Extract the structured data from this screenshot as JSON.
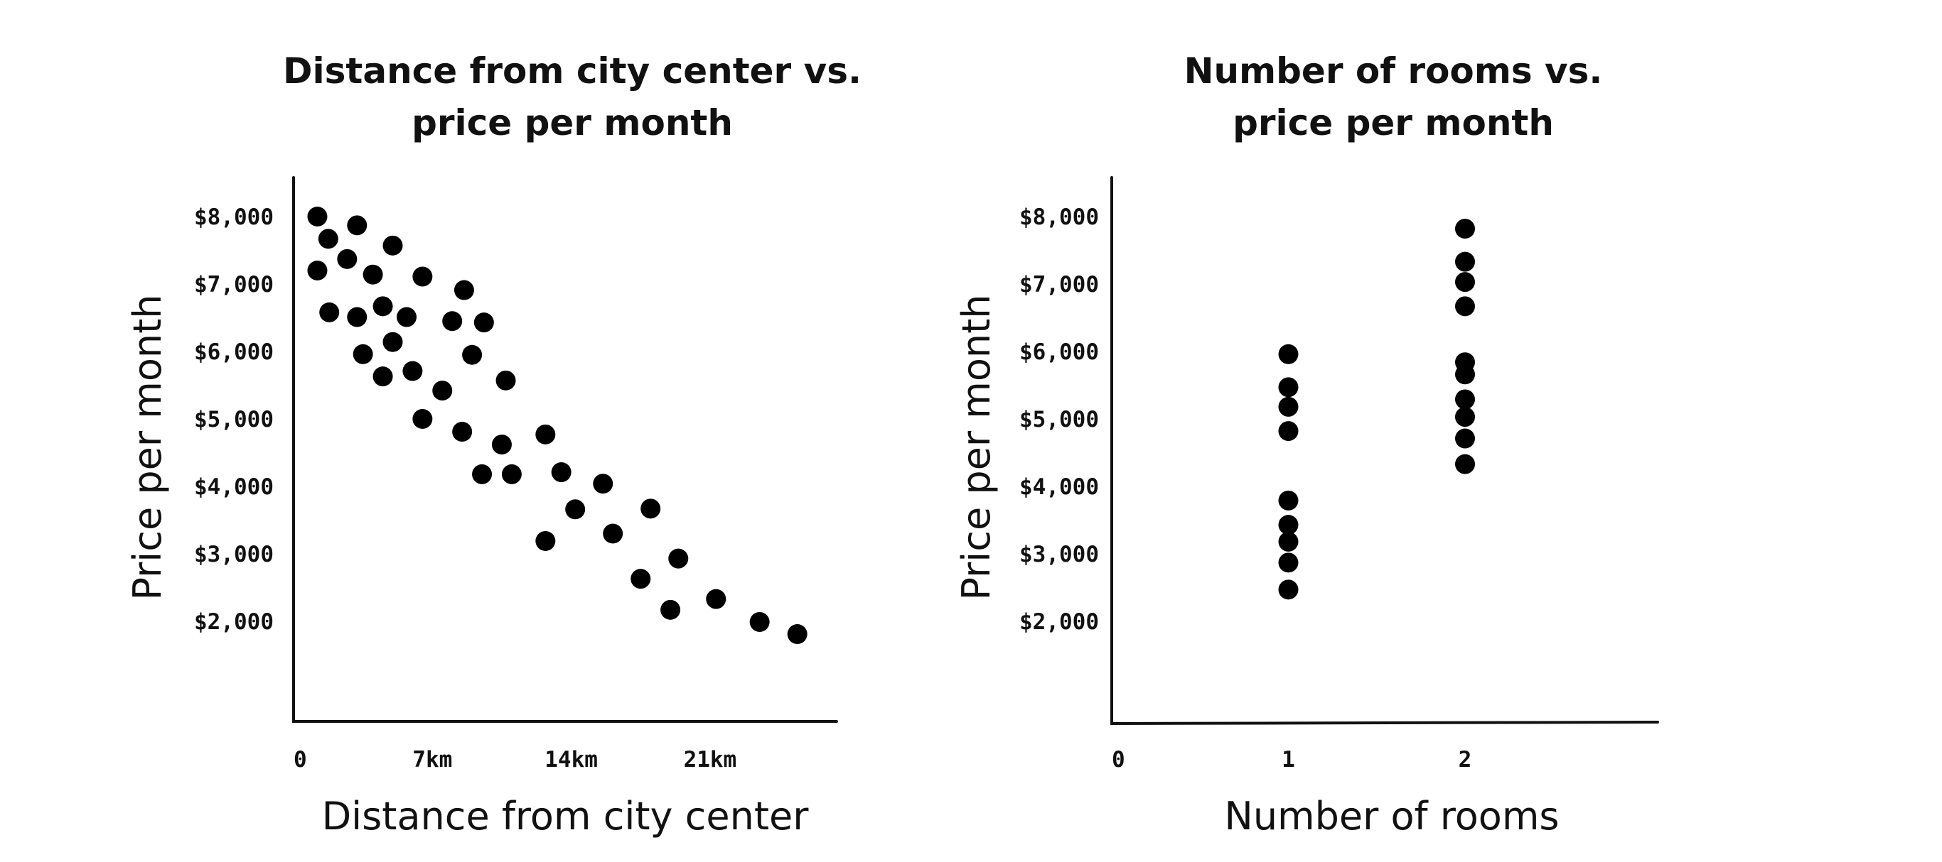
{
  "chart_data": [
    {
      "type": "scatter",
      "title_lines": [
        "Distance from city center vs.",
        "price per month"
      ],
      "xlabel": "Distance from city center",
      "ylabel": "Price per month",
      "x_ticks": [
        {
          "value": 0,
          "label": "0"
        },
        {
          "value": 7,
          "label": "7km"
        },
        {
          "value": 14,
          "label": "14km"
        },
        {
          "value": 21,
          "label": "21km"
        }
      ],
      "y_ticks": [
        {
          "value": 8000,
          "label": "$8,000"
        },
        {
          "value": 7000,
          "label": "$7,000"
        },
        {
          "value": 6000,
          "label": "$6,000"
        },
        {
          "value": 5000,
          "label": "$5,000"
        },
        {
          "value": 4000,
          "label": "$4,000"
        },
        {
          "value": 3000,
          "label": "$3,000"
        },
        {
          "value": 2000,
          "label": "$2,000"
        }
      ],
      "grid": false,
      "color": "#000000",
      "points": [
        [
          1.2,
          8000
        ],
        [
          1.75,
          7670
        ],
        [
          3.2,
          7870
        ],
        [
          5.0,
          7570
        ],
        [
          1.2,
          7200
        ],
        [
          2.7,
          7370
        ],
        [
          4.0,
          7140
        ],
        [
          6.5,
          7110
        ],
        [
          8.6,
          6910
        ],
        [
          1.8,
          6580
        ],
        [
          3.2,
          6510
        ],
        [
          4.5,
          6670
        ],
        [
          5.7,
          6510
        ],
        [
          8.0,
          6450
        ],
        [
          9.6,
          6430
        ],
        [
          5.0,
          6140
        ],
        [
          3.5,
          5960
        ],
        [
          9.0,
          5950
        ],
        [
          4.5,
          5630
        ],
        [
          6.0,
          5710
        ],
        [
          7.5,
          5420
        ],
        [
          10.7,
          5570
        ],
        [
          6.5,
          5000
        ],
        [
          8.5,
          4810
        ],
        [
          10.5,
          4620
        ],
        [
          12.7,
          4770
        ],
        [
          9.5,
          4180
        ],
        [
          11.0,
          4180
        ],
        [
          13.5,
          4210
        ],
        [
          15.6,
          4040
        ],
        [
          14.2,
          3660
        ],
        [
          18.0,
          3670
        ],
        [
          12.7,
          3190
        ],
        [
          16.1,
          3300
        ],
        [
          19.4,
          2930
        ],
        [
          17.5,
          2630
        ],
        [
          19.0,
          2170
        ],
        [
          21.3,
          2330
        ],
        [
          23.5,
          1990
        ],
        [
          25.4,
          1810
        ]
      ]
    },
    {
      "type": "scatter",
      "title_lines": [
        "Number of rooms vs.",
        "price per month"
      ],
      "xlabel": "Number of rooms",
      "ylabel": "Price per month",
      "x_ticks": [
        {
          "value": 0,
          "label": "0"
        },
        {
          "value": 1,
          "label": "1"
        },
        {
          "value": 2,
          "label": "2"
        }
      ],
      "y_ticks": [
        {
          "value": 8000,
          "label": "$8,000"
        },
        {
          "value": 7000,
          "label": "$7,000"
        },
        {
          "value": 6000,
          "label": "$6,000"
        },
        {
          "value": 5000,
          "label": "$5,000"
        },
        {
          "value": 4000,
          "label": "$4,000"
        },
        {
          "value": 3000,
          "label": "$3,000"
        },
        {
          "value": 2000,
          "label": "$2,000"
        }
      ],
      "grid": false,
      "color": "#000000",
      "points": [
        [
          1,
          5960
        ],
        [
          1,
          5470
        ],
        [
          1,
          5180
        ],
        [
          1,
          4820
        ],
        [
          1,
          3790
        ],
        [
          1,
          3430
        ],
        [
          1,
          3180
        ],
        [
          1,
          2870
        ],
        [
          1,
          2470
        ],
        [
          2,
          7820
        ],
        [
          2,
          7330
        ],
        [
          2,
          7030
        ],
        [
          2,
          6670
        ],
        [
          2,
          5840
        ],
        [
          2,
          5660
        ],
        [
          2,
          5290
        ],
        [
          2,
          5030
        ],
        [
          2,
          4710
        ],
        [
          2,
          4330
        ]
      ]
    }
  ]
}
